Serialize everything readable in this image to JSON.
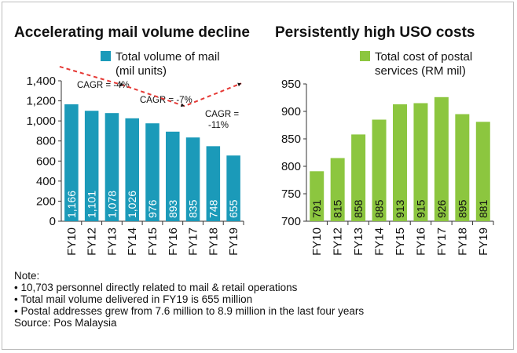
{
  "charts": [
    {
      "title": "Accelerating mail volume decline",
      "legend": [
        "Total volume of mail",
        "(mil units)"
      ],
      "cagr": [
        "CAGR = -4%",
        "CAGR = -7%",
        "CAGR =",
        "-11%"
      ]
    },
    {
      "title": "Persistently high USO costs",
      "legend": [
        "Total cost of postal",
        "services (RM mil)"
      ]
    }
  ],
  "notes": {
    "heading": "Note:",
    "bullets": [
      "• 10,703 personnel directly related to mail & retail operations",
      "• Total mail volume delivered in FY19 is 655 million",
      "• Postal addresses grew from 7.6 million to 8.9 million in the last four years"
    ],
    "source": "Source: Pos Malaysia"
  },
  "chart_data": [
    {
      "type": "bar",
      "title": "Accelerating mail volume decline",
      "categories": [
        "FY10",
        "FY12",
        "FY13",
        "FY14",
        "FY15",
        "FY16",
        "FY17",
        "FY18",
        "FY19"
      ],
      "series": [
        {
          "name": "Total volume of mail (mil units)",
          "values": [
            1166,
            1101,
            1078,
            1026,
            976,
            893,
            835,
            748,
            655
          ]
        }
      ],
      "value_labels": [
        "1,166",
        "1,101",
        "1,078",
        "1,026",
        "976",
        "893",
        "835",
        "748",
        "655"
      ],
      "yticks": [
        "0",
        "200",
        "400",
        "600",
        "800",
        "1,000",
        "1,200",
        "1,400"
      ],
      "ylim": [
        0,
        1400
      ],
      "color": "#1b9ab9",
      "trend_color": "#e53935",
      "legend": "top-right",
      "grid": false
    },
    {
      "type": "bar",
      "title": "Persistently high USO costs",
      "categories": [
        "FY10",
        "FY12",
        "FY13",
        "FY14",
        "FY15",
        "FY16",
        "FY17",
        "FY18",
        "FY19"
      ],
      "series": [
        {
          "name": "Total cost of postal services (RM mil)",
          "values": [
            791,
            815,
            858,
            885,
            913,
            915,
            926,
            895,
            881
          ]
        }
      ],
      "value_labels": [
        "791",
        "815",
        "858",
        "885",
        "913",
        "915",
        "926",
        "895",
        "881"
      ],
      "yticks": [
        "700",
        "750",
        "800",
        "850",
        "900",
        "950"
      ],
      "ylim": [
        700,
        950
      ],
      "color": "#8cc63f",
      "legend": "top-right",
      "grid": false
    }
  ]
}
